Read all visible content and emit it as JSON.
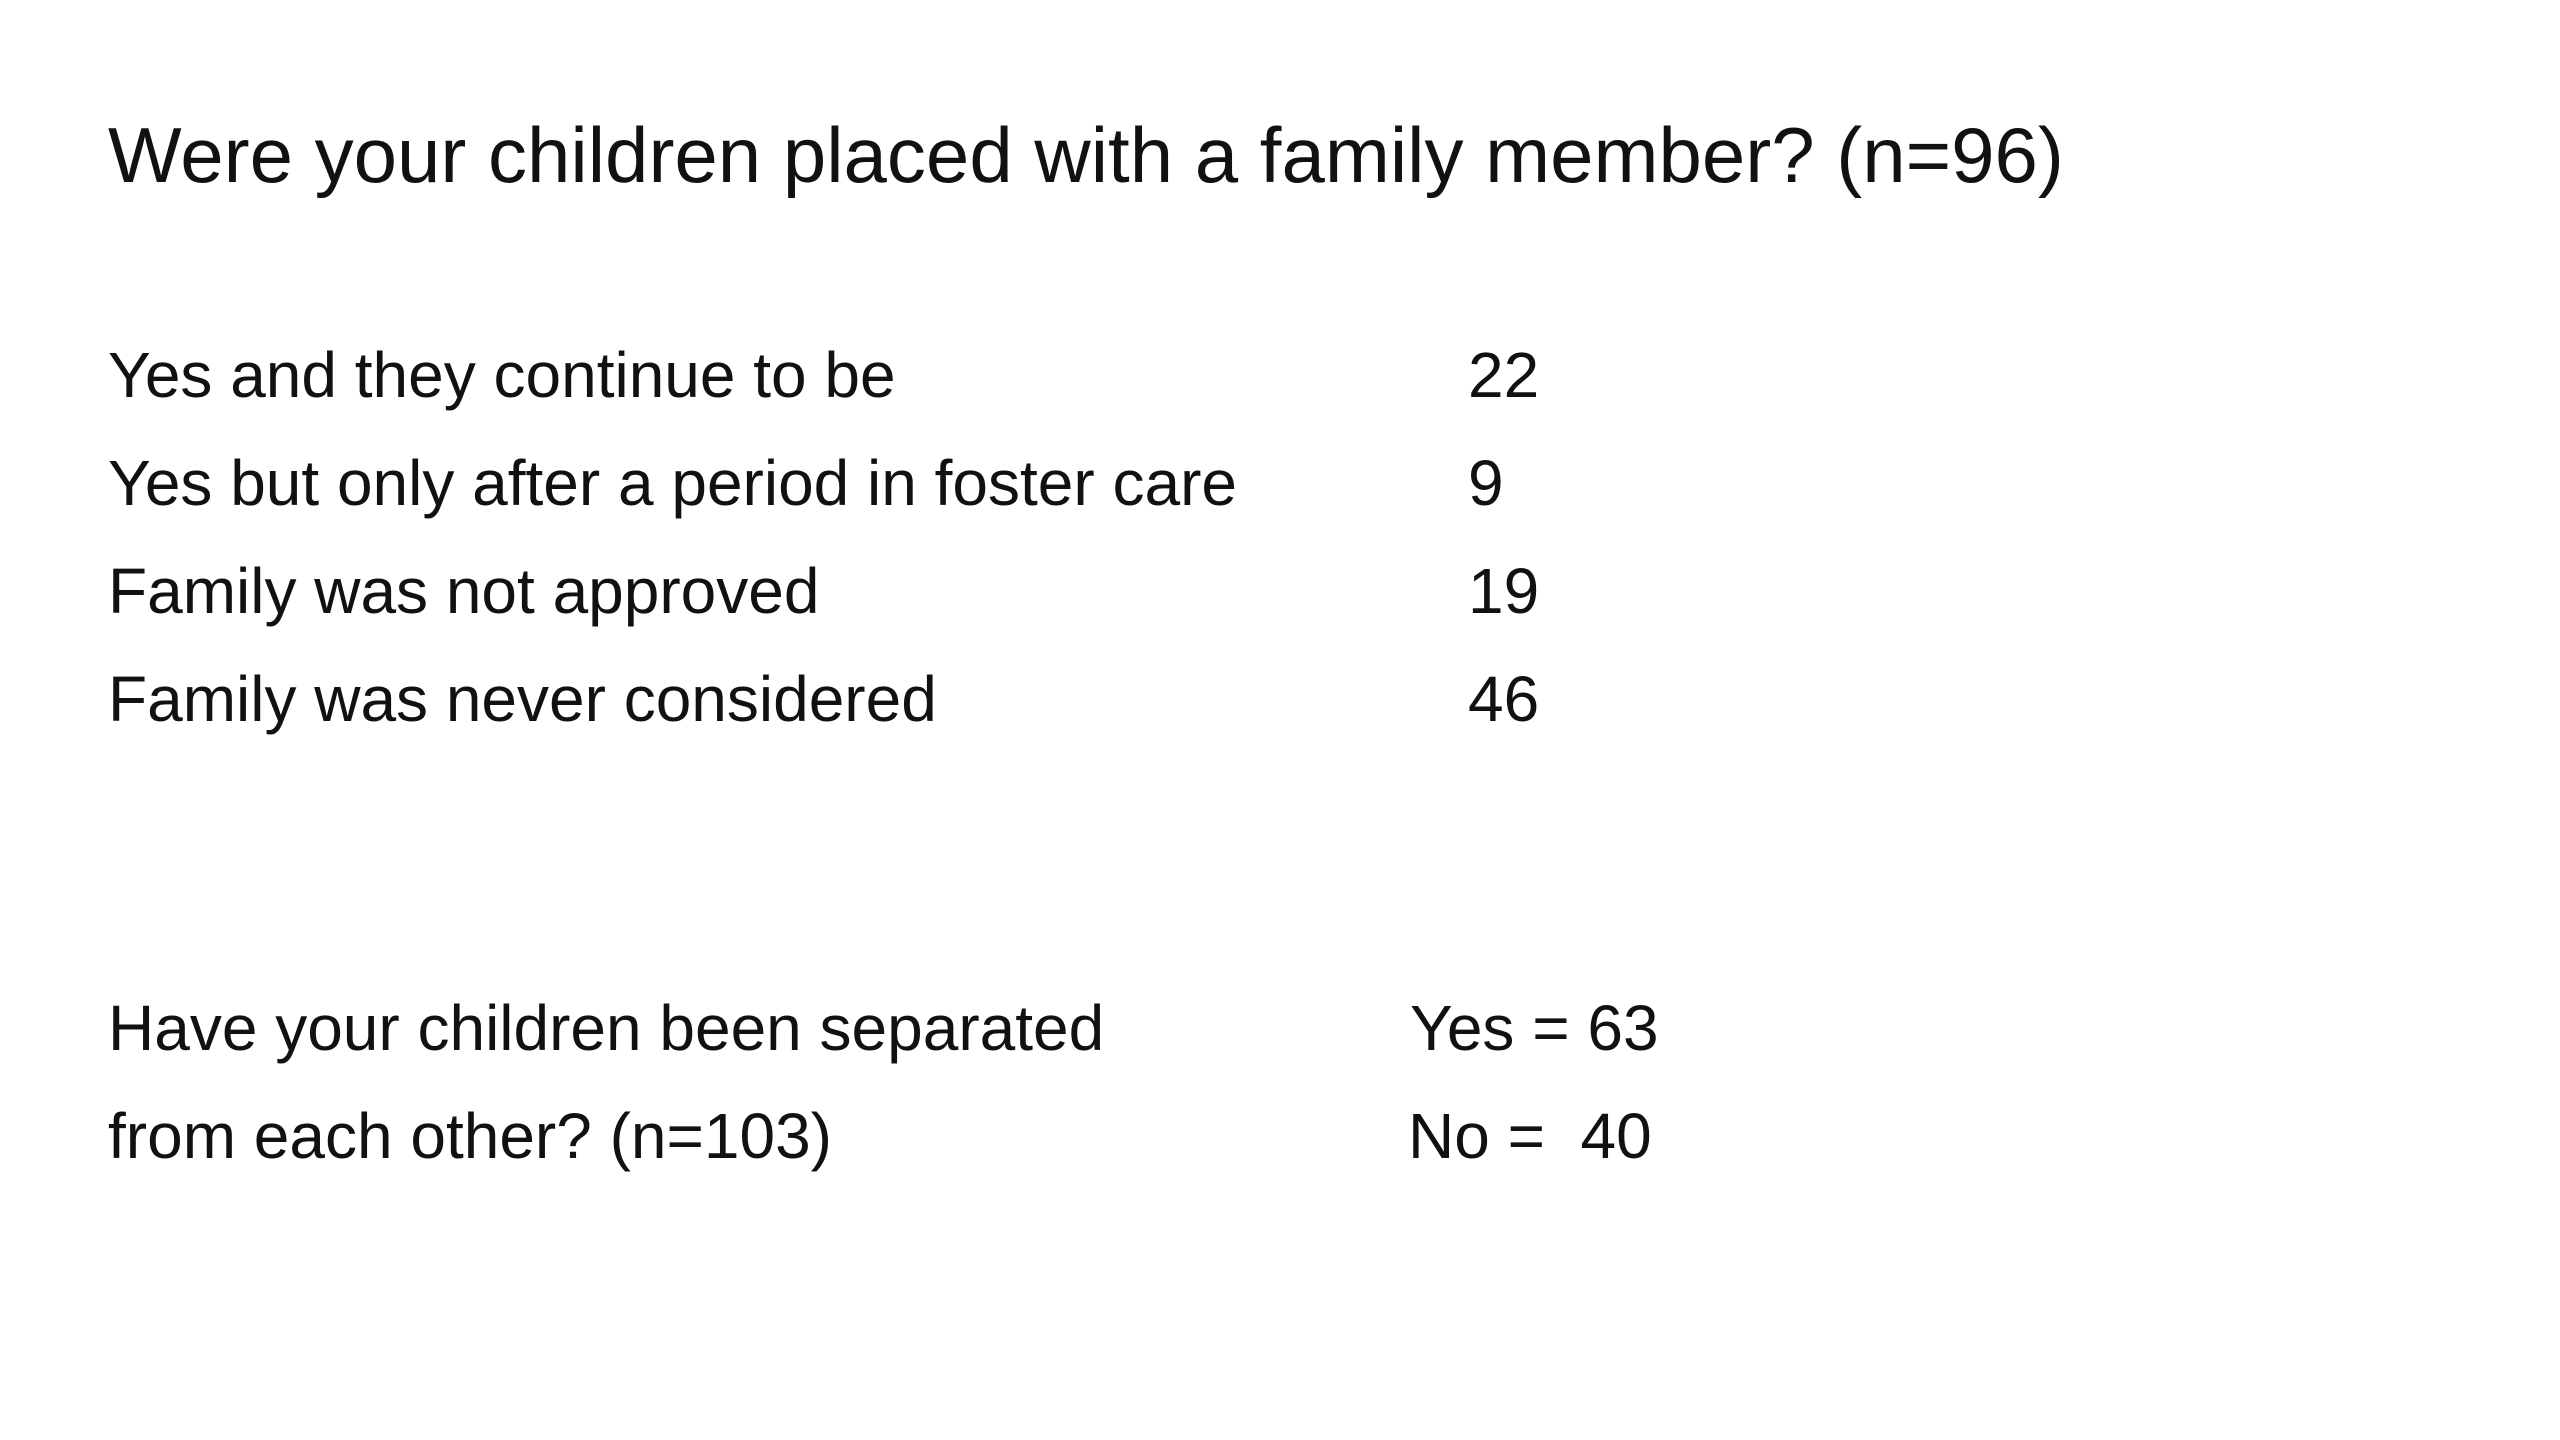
{
  "title": "Were your children placed with a family member? (n=96)",
  "placement_rows": [
    {
      "label": "Yes and they continue to be",
      "value": "22"
    },
    {
      "label": "Yes but only after a period in foster care",
      "value": "9"
    },
    {
      "label": "Family was not approved",
      "value": "19"
    },
    {
      "label": "Family was never considered",
      "value": "46"
    }
  ],
  "separation": {
    "question_line1": "Have your children been separated",
    "question_line2": "from each other? (n=103)",
    "yes_text": "Yes = 63",
    "no_text": "No =  40"
  }
}
